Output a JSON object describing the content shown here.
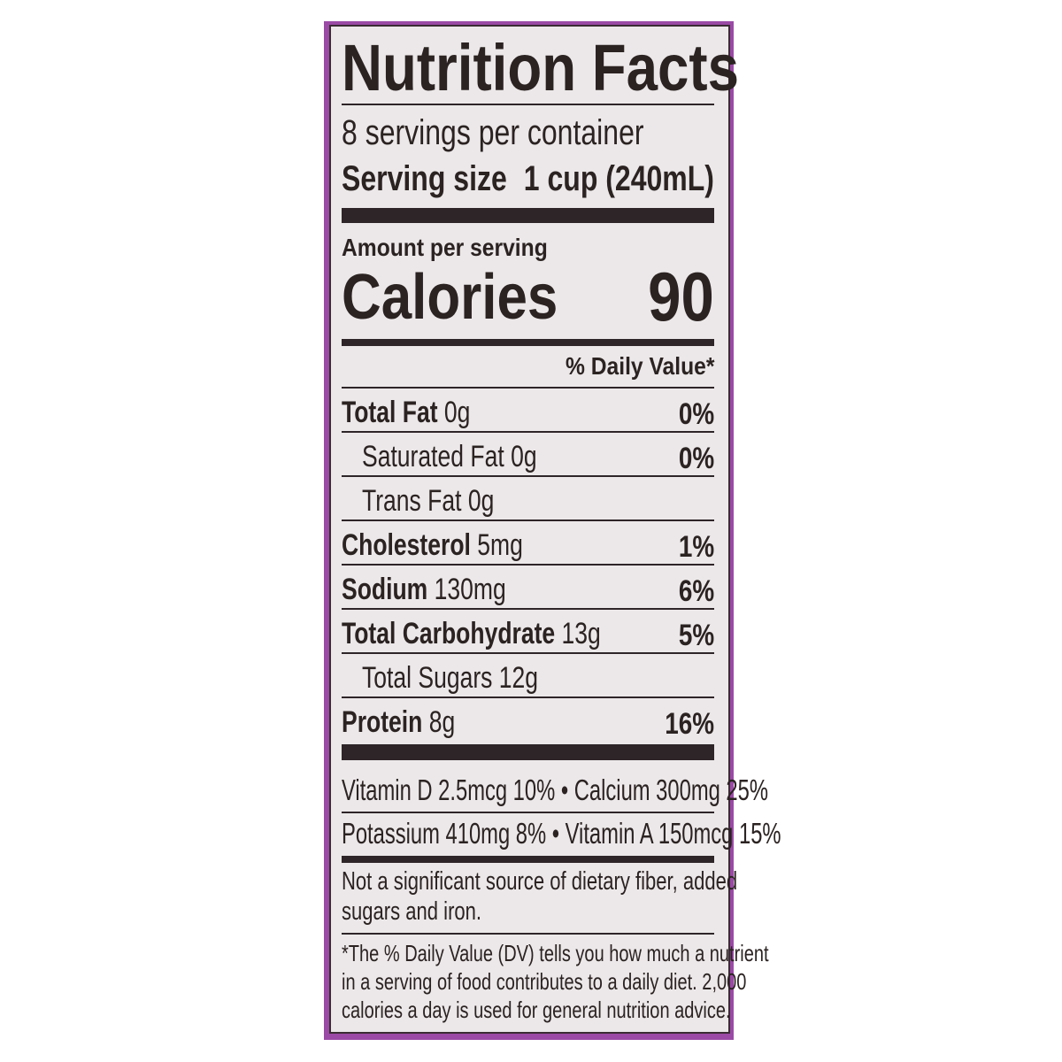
{
  "title": "Nutrition Facts",
  "servings_per_container": "8 servings per container",
  "serving_size_label": "Serving size",
  "serving_size_value": "1 cup (240mL)",
  "amount_per_serving": "Amount per serving",
  "calories_label": "Calories",
  "calories_value": "90",
  "daily_value_header": "% Daily Value*",
  "nutrients": [
    {
      "name": "Total Fat",
      "amount": "0g",
      "dv": "0%"
    },
    {
      "name": "Saturated Fat",
      "amount": "0g",
      "dv": "0%"
    },
    {
      "name": "Trans Fat",
      "amount": "0g",
      "dv": ""
    },
    {
      "name": "Cholesterol",
      "amount": "5mg",
      "dv": "1%"
    },
    {
      "name": "Sodium",
      "amount": "130mg",
      "dv": "6%"
    },
    {
      "name": "Total Carbohydrate",
      "amount": "13g",
      "dv": "5%"
    },
    {
      "name": "Total Sugars",
      "amount": "12g",
      "dv": ""
    },
    {
      "name": "Protein",
      "amount": "8g",
      "dv": "16%"
    }
  ],
  "vitamins": [
    "Vitamin D 2.5mcg 10% • Calcium 300mg 25%",
    "Potassium 410mg 8% • Vitamin A 150mcg 15%"
  ],
  "not_significant": [
    "Not a significant source of dietary fiber, added",
    "sugars and iron."
  ],
  "footnote": [
    "*The % Daily Value (DV) tells you how much a nutrient",
    "in a serving of food contributes to a daily diet.  2,000",
    "calories a day is used for general nutrition advice."
  ],
  "colors": {
    "border_accent": "#9b4aa6",
    "ink": "#2b2322",
    "label_bg": "#ece8e9"
  }
}
